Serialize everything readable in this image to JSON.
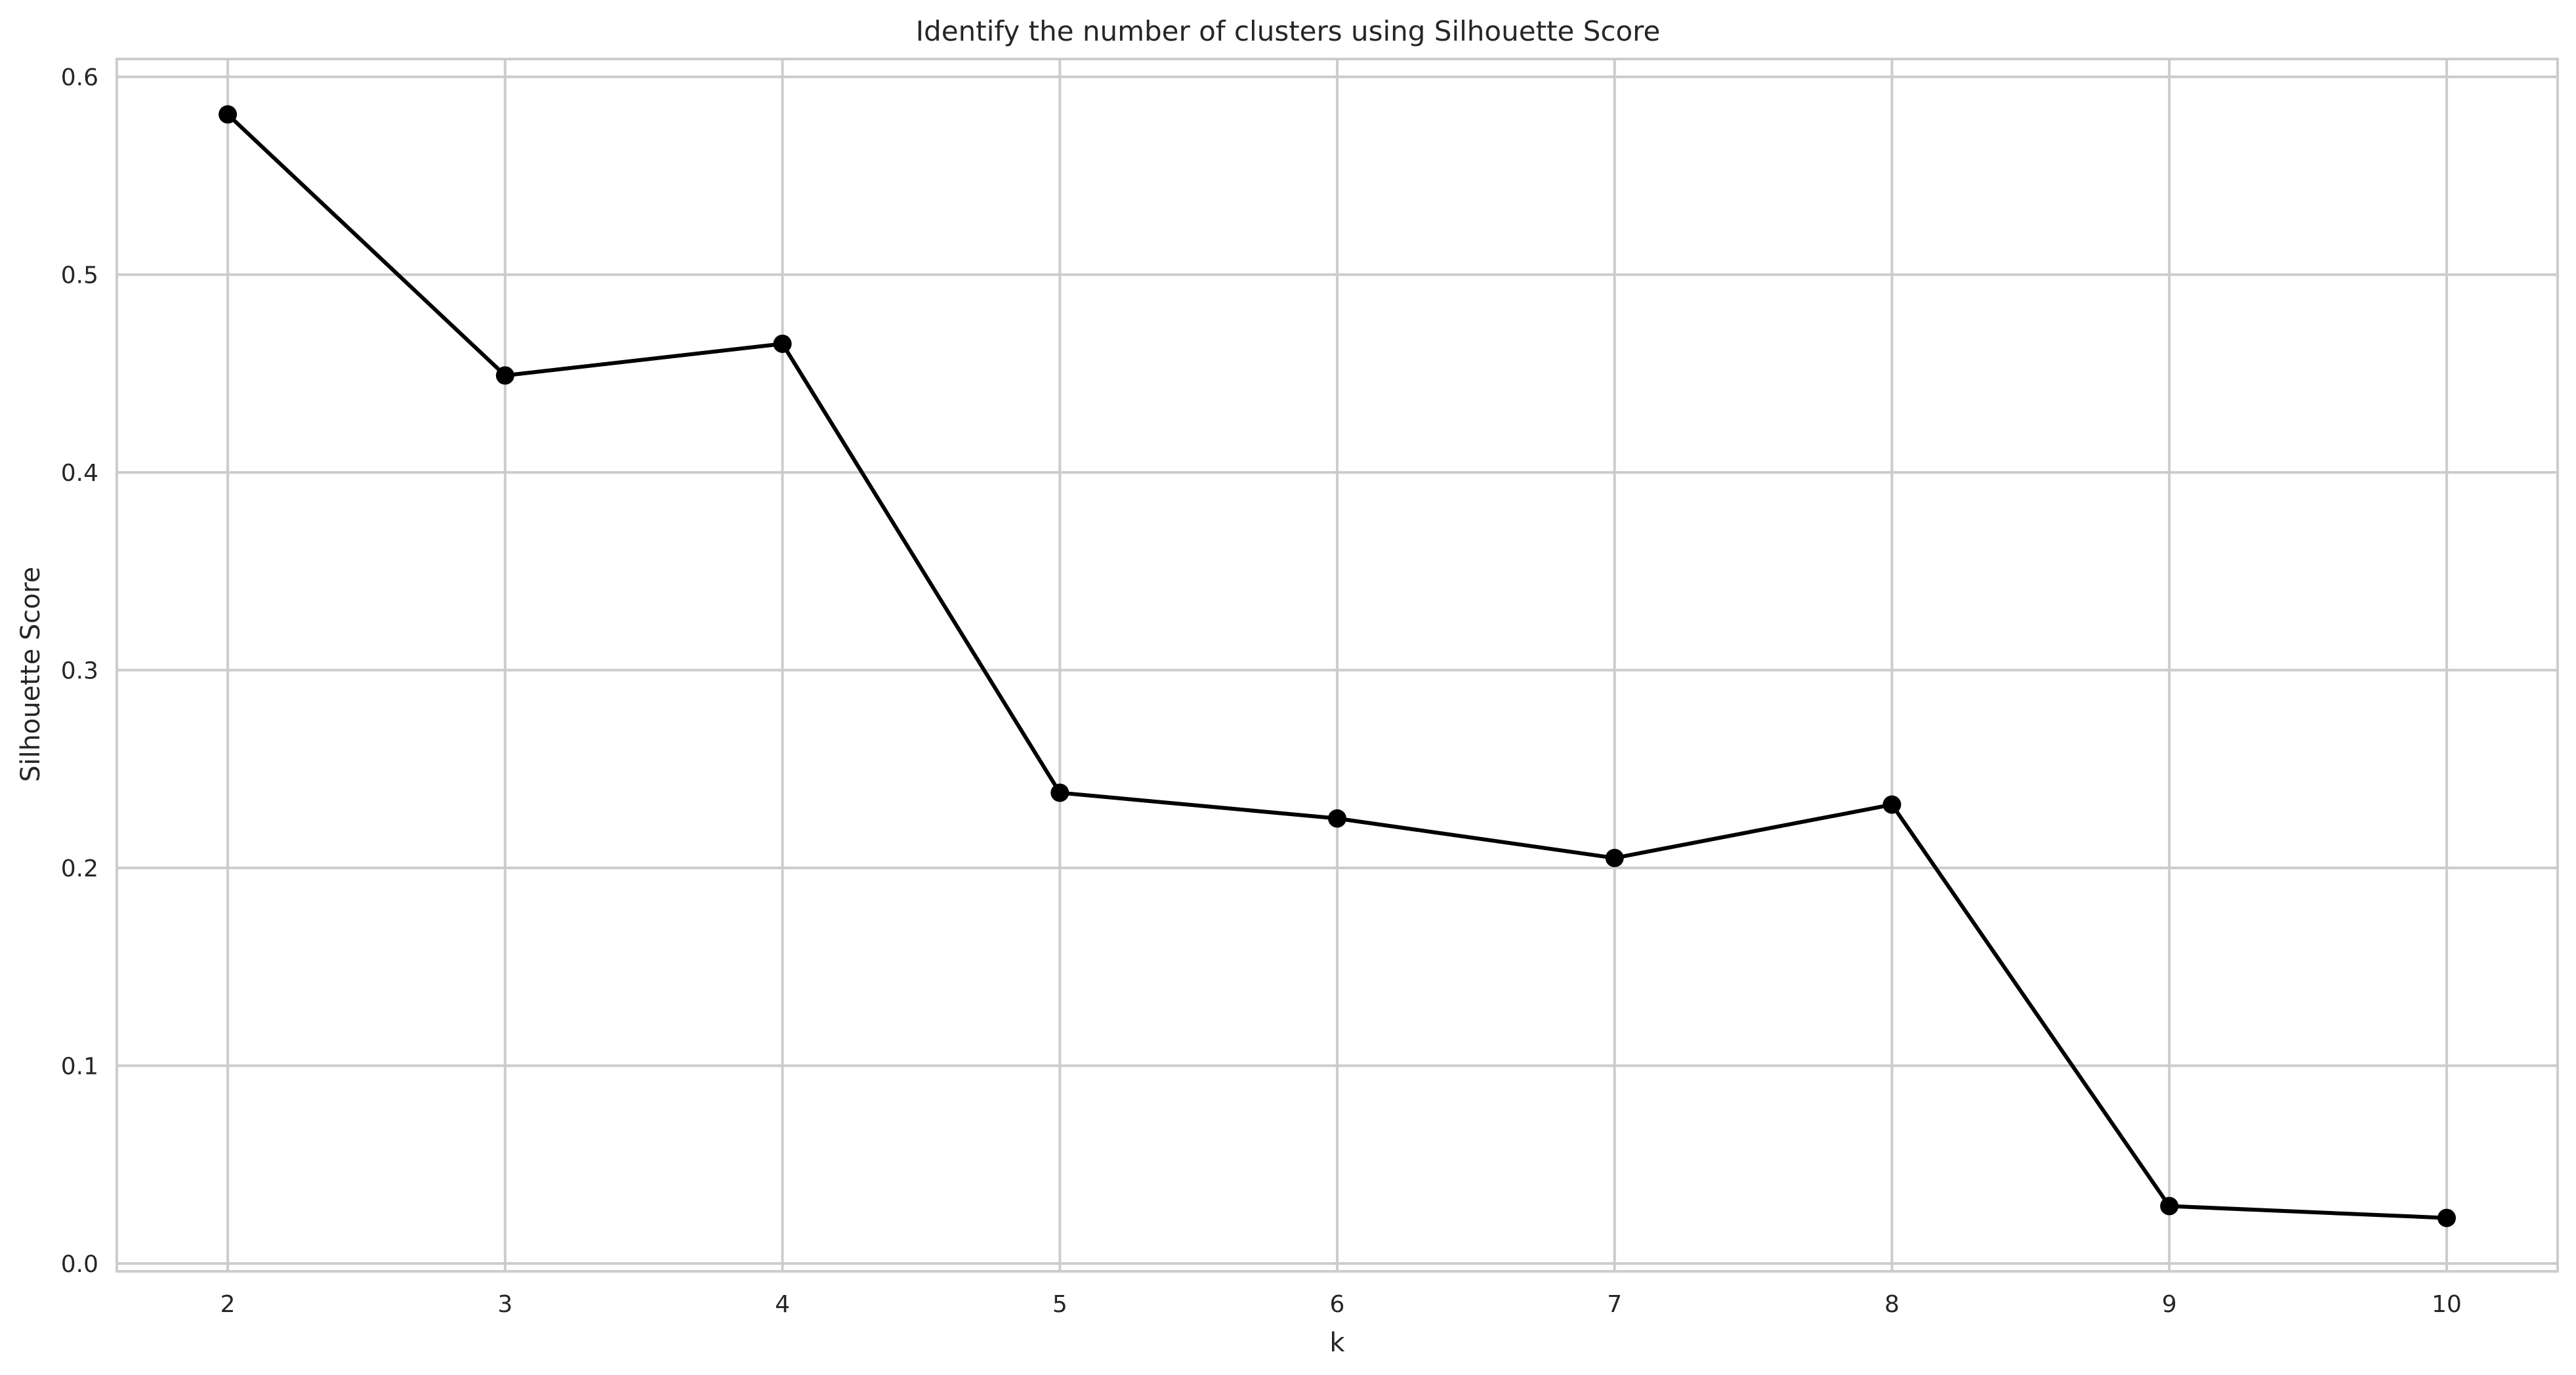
{
  "chart_data": {
    "type": "line",
    "title": "Identify the number of clusters using Silhouette Score",
    "xlabel": "k",
    "ylabel": "Silhouette Score",
    "x": [
      2,
      3,
      4,
      5,
      6,
      7,
      8,
      9,
      10
    ],
    "series": [
      {
        "values": [
          0.581,
          0.449,
          0.465,
          0.238,
          0.225,
          0.205,
          0.232,
          0.029,
          0.023
        ],
        "color": "#000000",
        "marker": "circle"
      }
    ],
    "xticks": [
      "2",
      "3",
      "4",
      "5",
      "6",
      "7",
      "8",
      "9",
      "10"
    ],
    "yticks": [
      "0.0",
      "0.1",
      "0.2",
      "0.3",
      "0.4",
      "0.5",
      "0.6"
    ],
    "xlim": [
      1.6,
      10.4
    ],
    "ylim": [
      -0.004,
      0.609
    ],
    "grid": true,
    "legend": "none",
    "colors": {
      "grid": "#cccccc",
      "line": "#000000",
      "frame": "#cccccc",
      "text": "#262626"
    }
  }
}
